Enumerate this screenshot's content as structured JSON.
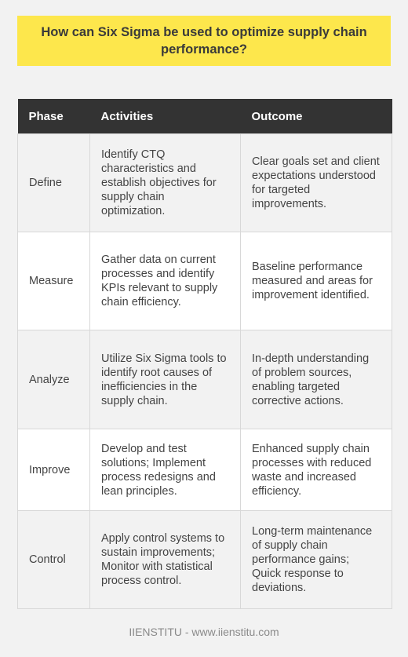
{
  "title": "How can Six Sigma be used to optimize supply chain performance?",
  "table": {
    "headers": [
      "Phase",
      "Activities",
      "Outcome"
    ],
    "rows": [
      {
        "phase": "Define",
        "activities": "Identify CTQ characteristics and establish objectives for supply chain optimization.",
        "outcome": "Clear goals set and client expectations understood for targeted improvements."
      },
      {
        "phase": "Measure",
        "activities": "Gather data on current processes and identify KPIs relevant to supply chain efficiency.",
        "outcome": "Baseline performance measured and areas for improvement identified."
      },
      {
        "phase": "Analyze",
        "activities": "Utilize Six Sigma tools to identify root causes of inefficiencies in the supply chain.",
        "outcome": "In-depth understanding of problem sources, enabling targeted corrective actions."
      },
      {
        "phase": "Improve",
        "activities": "Develop and test solutions; Implement process redesigns and lean principles.",
        "outcome": "Enhanced supply chain processes with reduced waste and increased efficiency."
      },
      {
        "phase": "Control",
        "activities": "Apply control systems to sustain improvements; Monitor with statistical process control.",
        "outcome": "Long-term maintenance of supply chain performance gains; Quick response to deviations."
      }
    ]
  },
  "footer": "IIENSTITU - www.iienstitu.com",
  "colors": {
    "title_background": "#fde74c",
    "header_background": "#333333",
    "page_background": "#f2f2f2"
  }
}
